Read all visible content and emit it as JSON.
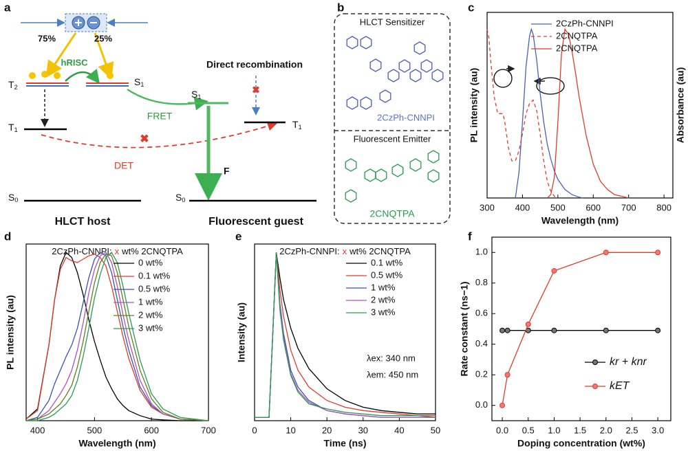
{
  "panel_labels": [
    "a",
    "b",
    "c",
    "d",
    "e",
    "f"
  ],
  "diagram": {
    "percent_left": "75%",
    "percent_right": "25%",
    "hrisc": "hRISC",
    "direct": "Direct recombination",
    "fret": "FRET",
    "det": "DET",
    "f": "F",
    "host": "HLCT host",
    "guest": "Fluorescent guest",
    "levels": {
      "host_t2": {
        "main": "T",
        "sub": "2"
      },
      "host_s1": {
        "main": "S",
        "sub": "1"
      },
      "host_t1": {
        "main": "T",
        "sub": "1"
      },
      "host_s0": {
        "main": "S",
        "sub": "0"
      },
      "guest_s1": {
        "main": "S",
        "sub": "1"
      },
      "guest_t1": {
        "main": "T",
        "sub": "1"
      },
      "guest_s0": {
        "main": "S",
        "sub": "0"
      }
    }
  },
  "structures": {
    "sensitizer_header": "HLCT Sensitizer",
    "sensitizer_name": "2CzPh-CNNPI",
    "emitter_header": "Fluorescent Emitter",
    "emitter_name": "2CNQTPA"
  },
  "chart_data": [
    {
      "type": "line",
      "xlabel": "Wavelength (nm)",
      "ylabel": "PL intensity (au)",
      "y2label": "Absorbance (au)",
      "xlim": [
        300,
        825
      ],
      "xticks": [
        300,
        400,
        500,
        600,
        700,
        800
      ],
      "ylim": [
        0,
        1.1
      ],
      "y2lim": [
        0,
        1.1
      ],
      "legend": "upper right",
      "series": [
        {
          "name": "2CzPh-CNNPI",
          "color": "#4a5fb4",
          "style": "solid",
          "x": [
            380,
            390,
            400,
            410,
            420,
            425,
            430,
            440,
            450,
            460,
            470,
            480,
            490,
            500,
            520,
            540,
            560,
            570
          ],
          "values": [
            0,
            0.15,
            0.45,
            0.78,
            0.96,
            1.0,
            0.97,
            0.82,
            0.62,
            0.45,
            0.32,
            0.23,
            0.16,
            0.11,
            0.05,
            0.02,
            0.005,
            0
          ]
        },
        {
          "name": "2CNQTPA",
          "color": "#e03a2c",
          "style": "dashed",
          "axis": "y2",
          "x": [
            300,
            305,
            310,
            320,
            330,
            340,
            345,
            350,
            360,
            370,
            380,
            390,
            400,
            410,
            420,
            430,
            440,
            450,
            460,
            470,
            480,
            490,
            500
          ],
          "values": [
            1.0,
            0.95,
            0.82,
            0.6,
            0.5,
            0.5,
            0.5,
            0.45,
            0.3,
            0.22,
            0.22,
            0.28,
            0.38,
            0.5,
            0.56,
            0.58,
            0.52,
            0.38,
            0.22,
            0.1,
            0.04,
            0.01,
            0
          ]
        },
        {
          "name": "2CNQTPA",
          "color": "#e03a2c",
          "style": "solid",
          "x": [
            470,
            480,
            490,
            500,
            510,
            520,
            530,
            540,
            550,
            560,
            580,
            600,
            620,
            640,
            660,
            680,
            700
          ],
          "values": [
            0,
            0.02,
            0.12,
            0.45,
            0.85,
            1.0,
            0.97,
            0.87,
            0.74,
            0.6,
            0.37,
            0.2,
            0.1,
            0.05,
            0.02,
            0.01,
            0
          ]
        }
      ]
    },
    {
      "type": "line",
      "title": [
        "2CzPh-CNNPI:",
        "x",
        "wt% 2CNQTPA"
      ],
      "xlabel": "Wavelength (nm)",
      "ylabel": "PL intensity (au)",
      "xlim": [
        380,
        700
      ],
      "xticks": [
        400,
        500,
        600,
        700
      ],
      "ylim": [
        0,
        1.05
      ],
      "legend": "upper right",
      "x": [
        380,
        400,
        420,
        430,
        440,
        450,
        460,
        470,
        480,
        490,
        500,
        510,
        520,
        530,
        540,
        550,
        560,
        580,
        600,
        620,
        650,
        700
      ],
      "series": [
        {
          "name": "0 wt%",
          "color": "#000000",
          "values": [
            0.01,
            0.07,
            0.45,
            0.72,
            0.92,
            1.0,
            0.97,
            0.88,
            0.75,
            0.6,
            0.47,
            0.36,
            0.26,
            0.19,
            0.13,
            0.09,
            0.06,
            0.03,
            0.01,
            0.005,
            0,
            0
          ]
        },
        {
          "name": "0.1 wt%",
          "color": "#e03a2c",
          "values": [
            0.01,
            0.06,
            0.45,
            0.72,
            0.9,
            0.97,
            0.95,
            0.94,
            0.96,
            0.98,
            0.99,
            0.97,
            0.92,
            0.8,
            0.65,
            0.5,
            0.37,
            0.18,
            0.08,
            0.04,
            0.01,
            0
          ]
        },
        {
          "name": "0.5 wt%",
          "color": "#3a4fb0",
          "values": [
            0,
            0.02,
            0.12,
            0.22,
            0.3,
            0.38,
            0.45,
            0.55,
            0.7,
            0.85,
            0.96,
            1.0,
            0.98,
            0.88,
            0.72,
            0.56,
            0.42,
            0.2,
            0.09,
            0.04,
            0.01,
            0
          ]
        },
        {
          "name": "1 wt%",
          "color": "#b050c0",
          "values": [
            0,
            0.01,
            0.06,
            0.11,
            0.16,
            0.22,
            0.3,
            0.42,
            0.58,
            0.76,
            0.9,
            0.98,
            1.0,
            0.94,
            0.8,
            0.63,
            0.48,
            0.24,
            0.1,
            0.04,
            0.01,
            0
          ]
        },
        {
          "name": "2 wt%",
          "color": "#5f7f1a",
          "values": [
            0,
            0.01,
            0.04,
            0.07,
            0.1,
            0.15,
            0.21,
            0.32,
            0.47,
            0.65,
            0.82,
            0.94,
            0.99,
            0.98,
            0.88,
            0.72,
            0.56,
            0.3,
            0.13,
            0.05,
            0.01,
            0
          ]
        },
        {
          "name": "3 wt%",
          "color": "#2a9a50",
          "values": [
            0,
            0,
            0.02,
            0.04,
            0.07,
            0.1,
            0.15,
            0.24,
            0.38,
            0.55,
            0.73,
            0.87,
            0.97,
            1.0,
            0.94,
            0.8,
            0.64,
            0.36,
            0.16,
            0.07,
            0.02,
            0
          ]
        }
      ]
    },
    {
      "type": "line",
      "title": [
        "2CzPh-CNNPI:",
        "x",
        "wt% 2CNQTPA"
      ],
      "xlabel": "Time (ns)",
      "ylabel": "Intensity (au)",
      "annotations": [
        "λex: 340 nm",
        "λem: 450 nm"
      ],
      "xlim": [
        0,
        50
      ],
      "xticks": [
        0,
        10,
        20,
        30,
        40,
        50
      ],
      "ylim": [
        0,
        1.05
      ],
      "legend": "upper right",
      "x": [
        0,
        4,
        5,
        6,
        7,
        8,
        10,
        12,
        15,
        20,
        25,
        30,
        35,
        40,
        45,
        50
      ],
      "series": [
        {
          "name": "0.1 wt%",
          "color": "#000000",
          "values": [
            0.02,
            0.02,
            0.5,
            1,
            0.85,
            0.72,
            0.55,
            0.43,
            0.31,
            0.19,
            0.12,
            0.08,
            0.06,
            0.05,
            0.04,
            0.04
          ]
        },
        {
          "name": "0.5 wt%",
          "color": "#e03a2c",
          "values": [
            0.02,
            0.02,
            0.5,
            1,
            0.78,
            0.62,
            0.42,
            0.3,
            0.2,
            0.12,
            0.08,
            0.06,
            0.05,
            0.04,
            0.03,
            0.03
          ]
        },
        {
          "name": "1 wt%",
          "color": "#3a4fb0",
          "values": [
            0.02,
            0.02,
            0.5,
            1,
            0.7,
            0.52,
            0.3,
            0.2,
            0.12,
            0.06,
            0.04,
            0.03,
            0.02,
            0.02,
            0.02,
            0.02
          ]
        },
        {
          "name": "2 wt%",
          "color": "#b050c0",
          "values": [
            0.02,
            0.02,
            0.5,
            1,
            0.68,
            0.5,
            0.28,
            0.18,
            0.11,
            0.06,
            0.04,
            0.03,
            0.02,
            0.02,
            0.02,
            0.02
          ]
        },
        {
          "name": "3 wt%",
          "color": "#2a9a50",
          "values": [
            0.02,
            0.02,
            0.5,
            1,
            0.66,
            0.48,
            0.27,
            0.17,
            0.1,
            0.07,
            0.05,
            0.04,
            0.03,
            0.03,
            0.03,
            0.02
          ]
        }
      ]
    },
    {
      "type": "line",
      "markers": true,
      "xlabel": "Doping concentration (wt%)",
      "ylabel": "Rate constant (ns−1)",
      "xlim": [
        -0.2,
        3.25
      ],
      "xticks": [
        {
          "value": 0,
          "label": "0.0"
        },
        0.5,
        {
          "value": 1,
          "label": "1.0"
        },
        1.5,
        {
          "value": 2,
          "label": "2.0"
        },
        2.5,
        {
          "value": 3,
          "label": "3.0"
        }
      ],
      "ylim": [
        -0.1,
        1.1
      ],
      "yticks": [
        {
          "value": 0,
          "label": "0.0"
        },
        0.2,
        0.4,
        0.6,
        0.8,
        {
          "value": 1,
          "label": "1.0"
        }
      ],
      "legend": "lower right",
      "x": [
        0,
        0.1,
        0.5,
        1,
        2,
        3
      ],
      "series": [
        {
          "name": "kr + knr",
          "color": "#000000",
          "values": [
            0.49,
            0.49,
            0.49,
            0.49,
            0.49,
            0.49
          ]
        },
        {
          "name": "kET",
          "color": "#e03a2c",
          "values": [
            0,
            0.2,
            0.53,
            0.88,
            1.0,
            1.0
          ]
        }
      ]
    }
  ]
}
